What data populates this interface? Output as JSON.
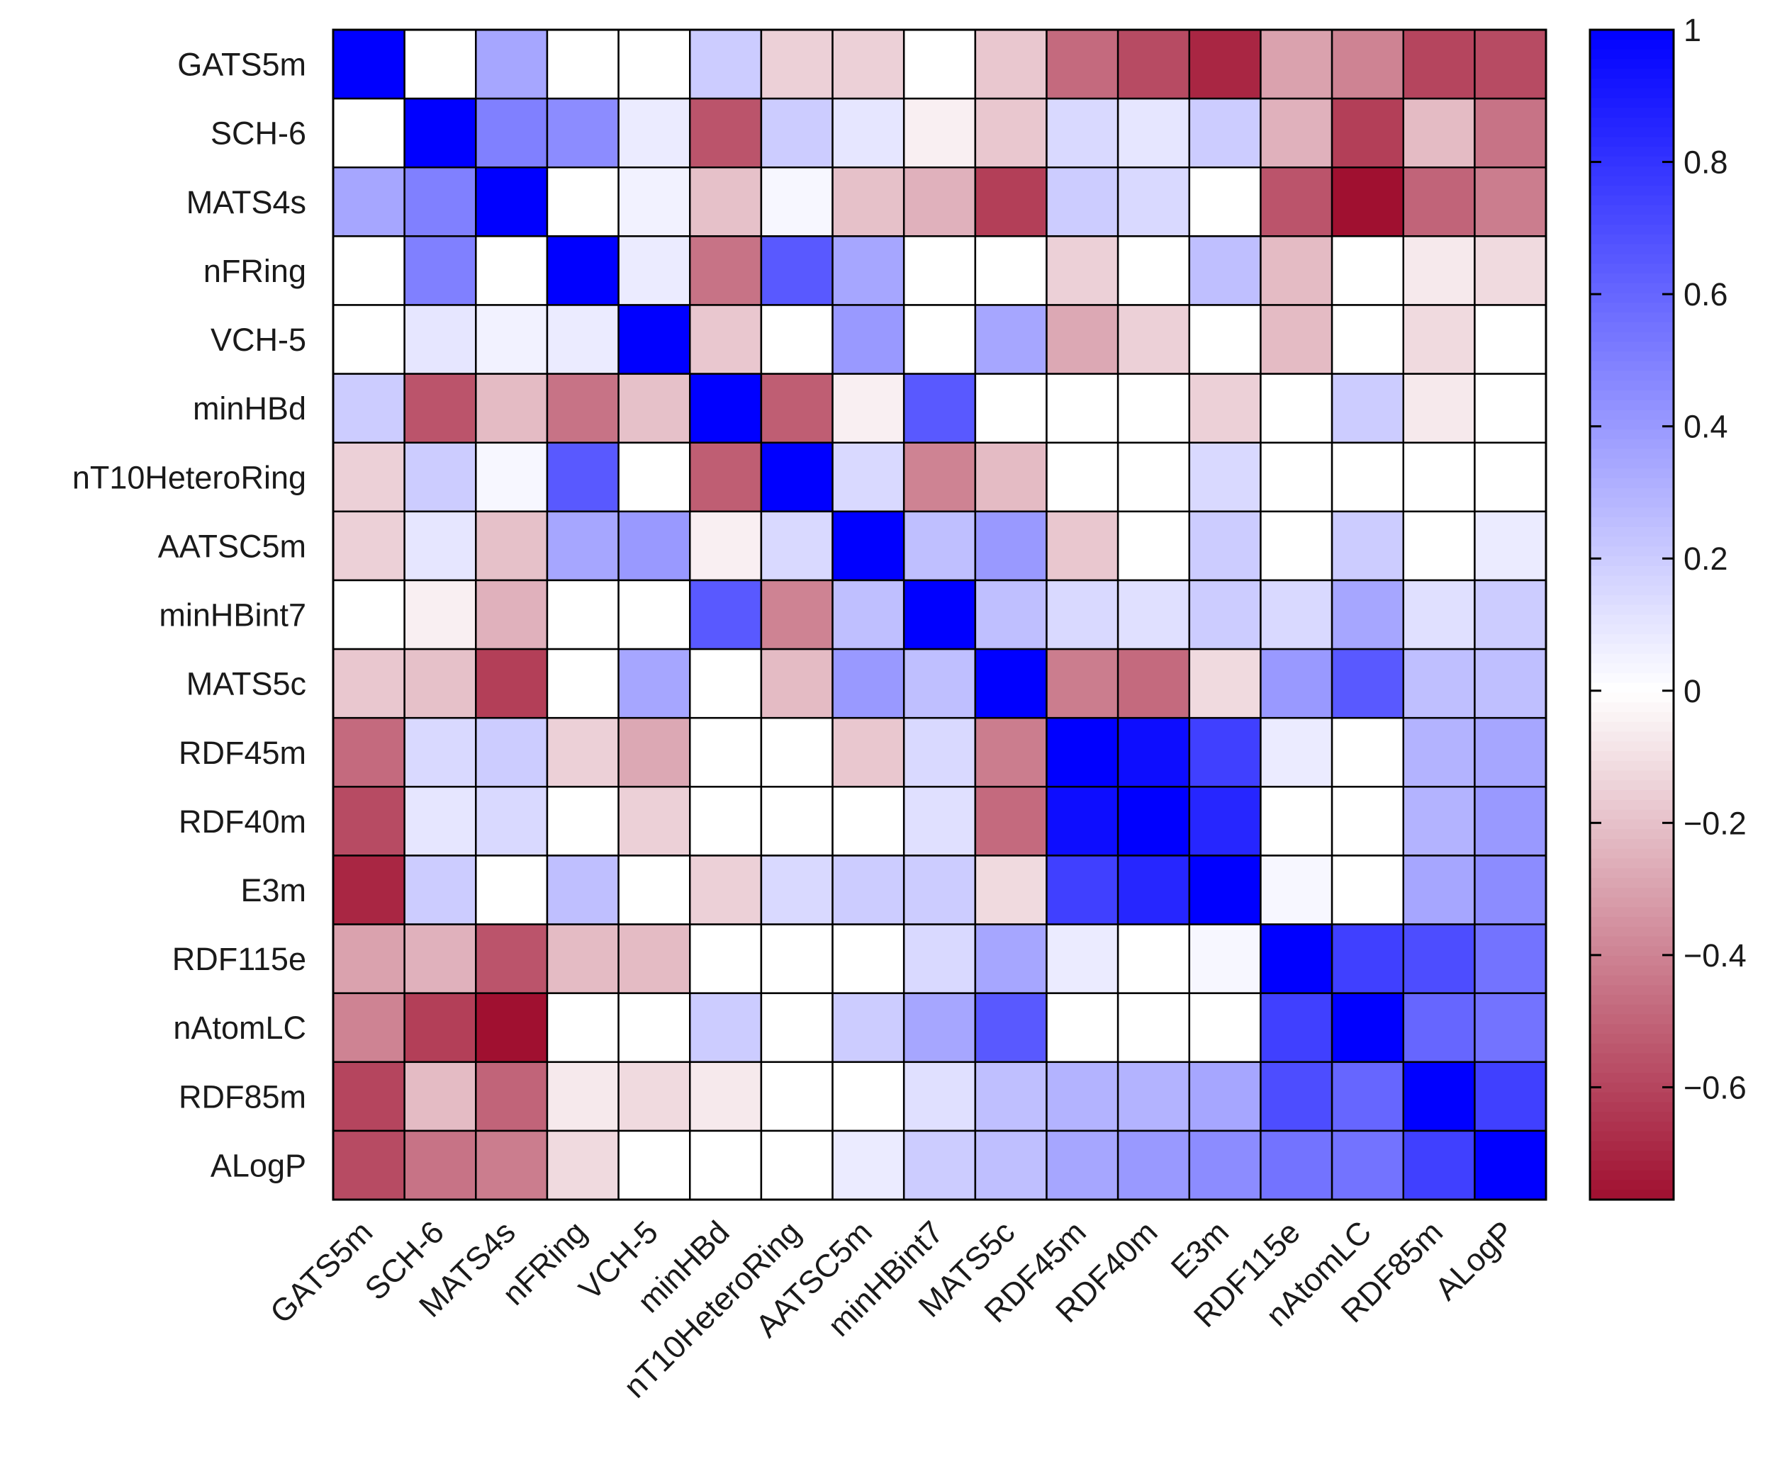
{
  "chart_data": {
    "type": "heatmap",
    "title": "",
    "xlabel": "",
    "ylabel": "",
    "rows": [
      "GATS5m",
      "SCH-6",
      "MATS4s",
      "nFRing",
      "VCH-5",
      "minHBd",
      "nT10HeteroRing",
      "AATSC5m",
      "minHBint7",
      "MATS5c",
      "RDF45m",
      "RDF40m",
      "E3m",
      "RDF115e",
      "nAtomLC",
      "RDF85m",
      "ALogP"
    ],
    "columns": [
      "GATS5m",
      "SCH-6",
      "MATS4s",
      "nFRing",
      "VCH-5",
      "minHBd",
      "nT10HeteroRing",
      "AATSC5m",
      "minHBint7",
      "MATS5c",
      "RDF45m",
      "RDF40m",
      "E3m",
      "RDF115e",
      "nAtomLC",
      "RDF85m",
      "ALogP"
    ],
    "values": [
      [
        1.0,
        0.0,
        0.35,
        0.0,
        0.0,
        0.2,
        -0.15,
        -0.15,
        0.0,
        -0.18,
        -0.48,
        -0.58,
        -0.7,
        -0.3,
        -0.4,
        -0.6,
        -0.58
      ],
      [
        0.0,
        1.0,
        0.5,
        0.45,
        0.08,
        -0.55,
        0.2,
        0.1,
        -0.05,
        -0.18,
        0.15,
        0.1,
        0.2,
        -0.25,
        -0.62,
        -0.22,
        -0.45
      ],
      [
        0.35,
        0.5,
        1.0,
        0.0,
        0.05,
        -0.2,
        0.03,
        -0.2,
        -0.25,
        -0.62,
        0.2,
        0.15,
        0.0,
        -0.55,
        -0.78,
        -0.5,
        -0.42
      ],
      [
        0.0,
        0.5,
        0.0,
        1.0,
        0.08,
        -0.45,
        0.65,
        0.35,
        0.0,
        0.0,
        -0.15,
        0.0,
        0.25,
        -0.22,
        0.0,
        -0.07,
        -0.12
      ],
      [
        0.0,
        0.1,
        0.05,
        0.08,
        1.0,
        -0.18,
        0.0,
        0.4,
        0.0,
        0.35,
        -0.28,
        -0.15,
        0.0,
        -0.22,
        0.0,
        -0.12,
        0.0
      ],
      [
        0.2,
        -0.55,
        -0.22,
        -0.45,
        -0.2,
        1.0,
        -0.52,
        -0.05,
        0.65,
        0.0,
        0.0,
        0.0,
        -0.15,
        0.0,
        0.2,
        -0.07,
        0.0
      ],
      [
        -0.15,
        0.2,
        0.03,
        0.65,
        0.0,
        -0.52,
        1.0,
        0.15,
        -0.4,
        -0.22,
        0.0,
        0.0,
        0.15,
        0.0,
        0.0,
        0.0,
        0.0
      ],
      [
        -0.15,
        0.1,
        -0.2,
        0.35,
        0.4,
        -0.05,
        0.15,
        1.0,
        0.25,
        0.4,
        -0.18,
        0.0,
        0.2,
        0.0,
        0.2,
        0.0,
        0.08
      ],
      [
        0.0,
        -0.05,
        -0.25,
        0.0,
        0.0,
        0.65,
        -0.4,
        0.25,
        1.0,
        0.25,
        0.15,
        0.12,
        0.2,
        0.15,
        0.35,
        0.12,
        0.2
      ],
      [
        -0.18,
        -0.2,
        -0.62,
        0.0,
        0.35,
        0.0,
        -0.22,
        0.4,
        0.25,
        1.0,
        -0.42,
        -0.48,
        -0.12,
        0.4,
        0.65,
        0.25,
        0.25
      ],
      [
        -0.48,
        0.15,
        0.2,
        -0.15,
        -0.28,
        0.0,
        0.0,
        -0.18,
        0.15,
        -0.42,
        1.0,
        0.95,
        0.75,
        0.08,
        0.0,
        0.3,
        0.35
      ],
      [
        -0.58,
        0.1,
        0.15,
        0.0,
        -0.15,
        0.0,
        0.0,
        0.0,
        0.12,
        -0.48,
        0.95,
        1.0,
        0.85,
        0.0,
        0.0,
        0.3,
        0.4
      ],
      [
        -0.7,
        0.2,
        0.0,
        0.25,
        0.0,
        -0.15,
        0.15,
        0.2,
        0.2,
        -0.12,
        0.75,
        0.85,
        1.0,
        0.03,
        0.0,
        0.35,
        0.45
      ],
      [
        -0.3,
        -0.25,
        -0.55,
        -0.22,
        -0.22,
        0.0,
        0.0,
        0.0,
        0.15,
        0.35,
        0.08,
        0.0,
        0.03,
        1.0,
        0.75,
        0.7,
        0.55
      ],
      [
        -0.4,
        -0.62,
        -0.78,
        0.0,
        0.0,
        0.2,
        0.0,
        0.2,
        0.35,
        0.65,
        0.0,
        0.0,
        0.0,
        0.75,
        1.0,
        0.6,
        0.55
      ],
      [
        -0.6,
        -0.22,
        -0.5,
        -0.07,
        -0.12,
        -0.07,
        0.0,
        0.0,
        0.12,
        0.25,
        0.3,
        0.3,
        0.35,
        0.7,
        0.6,
        1.0,
        0.75
      ],
      [
        -0.58,
        -0.45,
        -0.42,
        -0.12,
        0.0,
        0.0,
        0.0,
        0.08,
        0.2,
        0.25,
        0.35,
        0.4,
        0.45,
        0.55,
        0.55,
        0.75,
        1.0
      ]
    ],
    "colorbar": {
      "min": -0.77,
      "max": 1.0,
      "ticks": [
        1,
        0.8,
        0.6,
        0.4,
        0.2,
        0,
        -0.2,
        -0.4,
        -0.6
      ],
      "tick_labels": [
        "1",
        "0.8",
        "0.6",
        "0.4",
        "0.2",
        "0",
        "−0.2",
        "−0.4",
        "−0.6"
      ],
      "positive_color": "#0000ff",
      "zero_color": "#ffffff",
      "negative_color": "#a01030",
      "placement": "right"
    },
    "grid": true,
    "legend": "none"
  }
}
